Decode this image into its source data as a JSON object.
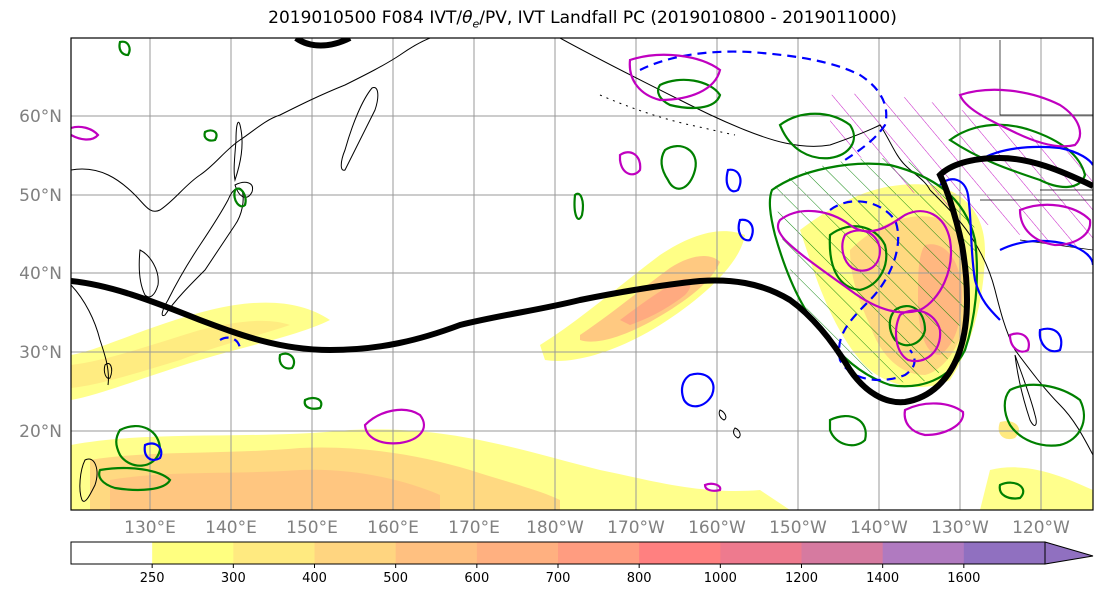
{
  "title": {
    "prefix": "2019010500 F084 IVT/",
    "theta": "θ",
    "theta_sub": "e",
    "suffix": "/PV, IVT Landfall PC (2019010800 - 2019011000)"
  },
  "map": {
    "projection": "equirectangular",
    "extent": {
      "lon_min": 120,
      "lon_max": 255,
      "lat_min": 10,
      "lat_max": 70
    },
    "gridlines": true,
    "lat_labels": [
      "60°N",
      "50°N",
      "40°N",
      "30°N",
      "20°N"
    ],
    "lon_labels": [
      "130°E",
      "140°E",
      "150°E",
      "160°E",
      "170°E",
      "180°W",
      "170°W",
      "160°W",
      "150°W",
      "140°W",
      "130°W",
      "120°W"
    ],
    "label_color": "#808080"
  },
  "colorbar": {
    "levels": [
      "250",
      "300",
      "400",
      "500",
      "600",
      "700",
      "800",
      "1000",
      "1200",
      "1400",
      "1600"
    ],
    "colors": [
      "#ffffff",
      "#ffff80",
      "#ffea80",
      "#ffd580",
      "#ffc080",
      "#ffb080",
      "#ff9c80",
      "#ff8080",
      "#ee7a8e",
      "#d67aa0",
      "#b07ac0",
      "#9070c0"
    ],
    "extend": "max"
  },
  "legend_colors": {
    "ivt_fill": "#ffd060",
    "theta_e": "#008000",
    "pv_positive": "#0000ff",
    "pv_magenta": "#c000c0",
    "ar_axis": "#000000"
  }
}
